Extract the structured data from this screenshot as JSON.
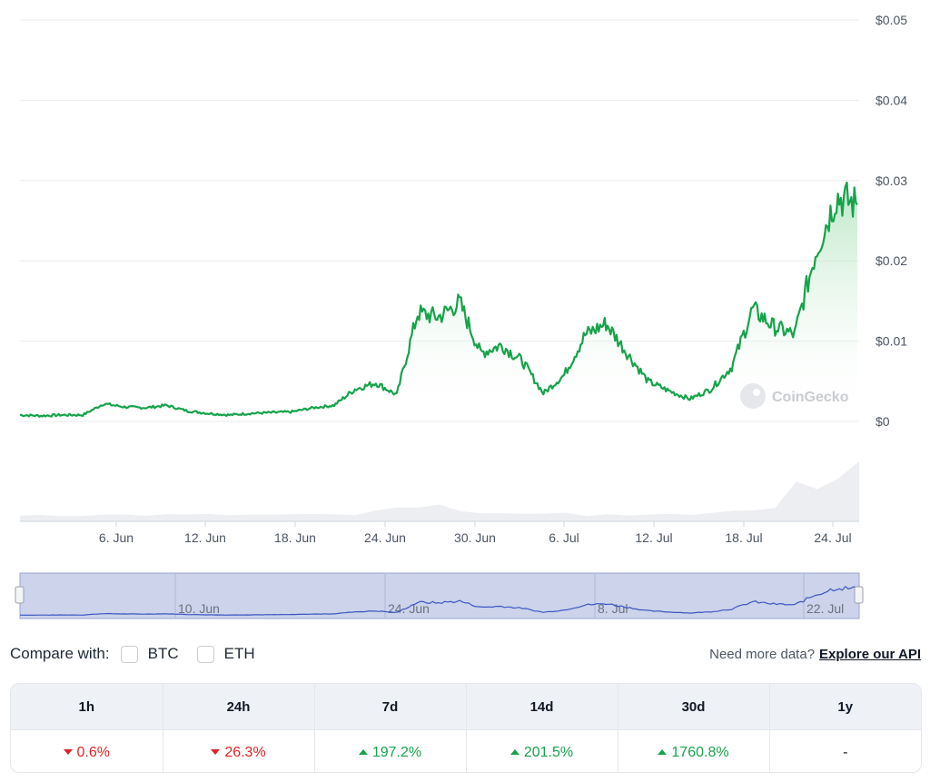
{
  "chart_data": {
    "type": "area",
    "y_tick_labels": [
      "$0",
      "$0.01",
      "$0.02",
      "$0.03",
      "$0.04",
      "$0.05"
    ],
    "ylim": [
      0,
      0.05
    ],
    "x_tick_labels": [
      "6. Jun",
      "12. Jun",
      "18. Jun",
      "24. Jun",
      "30. Jun",
      "6. Jul",
      "12. Jul",
      "18. Jul",
      "24. Jul"
    ],
    "x": [
      "31. May",
      "2. Jun",
      "4. Jun",
      "6. Jun",
      "8. Jun",
      "10. Jun",
      "12. Jun",
      "14. Jun",
      "16. Jun",
      "18. Jun",
      "20. Jun",
      "22. Jun",
      "24. Jun",
      "26. Jun",
      "28. Jun",
      "30. Jun",
      "1. Jul",
      "2. Jul",
      "3. Jul",
      "4. Jul",
      "5. Jul",
      "6. Jul",
      "7. Jul",
      "8. Jul",
      "9. Jul",
      "10. Jul",
      "11. Jul",
      "12. Jul",
      "13. Jul",
      "14. Jul",
      "15. Jul",
      "16. Jul",
      "17. Jul",
      "18. Jul",
      "19. Jul",
      "20. Jul",
      "21. Jul",
      "22. Jul",
      "23. Jul",
      "24. Jul",
      "25. Jul"
    ],
    "series": [
      {
        "values": [
          0.0008,
          0.0007,
          0.0008,
          0.0008,
          0.0022,
          0.0018,
          0.0017,
          0.002,
          0.0013,
          0.001,
          0.0008,
          0.001,
          0.0011,
          0.0012,
          0.0017,
          0.002,
          0.004,
          0.0048,
          0.0033,
          0.0135,
          0.013,
          0.0148,
          0.0085,
          0.0095,
          0.0075,
          0.0035,
          0.0058,
          0.0108,
          0.0122,
          0.0085,
          0.005,
          0.0038,
          0.0028,
          0.004,
          0.0068,
          0.014,
          0.0118,
          0.0108,
          0.021,
          0.028,
          0.027
        ]
      }
    ],
    "volume": [
      0.1,
      0.1,
      0.1,
      0.1,
      0.1,
      0.1,
      0.1,
      0.1,
      0.1,
      0.1,
      0.1,
      0.1,
      0.1,
      0.1,
      0.1,
      0.1,
      0.1,
      0.15,
      0.2,
      0.2,
      0.22,
      0.2,
      0.15,
      0.12,
      0.1,
      0.1,
      0.15,
      0.1,
      0.1,
      0.1,
      0.1,
      0.1,
      0.12,
      0.15,
      0.15,
      0.2,
      0.25,
      0.55,
      0.45,
      0.6,
      0.95
    ],
    "navigator": {
      "tick_labels": [
        "10. Jun",
        "24. Jun",
        "8. Jul",
        "22. Jul"
      ]
    },
    "watermark": "CoinGecko",
    "colors": {
      "line": "#16a34a",
      "area_top": "#bfe8c9",
      "navigator_fill": "#ccd3ea",
      "navigator_line": "#3b56c4"
    }
  },
  "compare": {
    "label": "Compare with:",
    "options": [
      {
        "label": "BTC"
      },
      {
        "label": "ETH"
      }
    ],
    "api_note": "Need more data?",
    "api_link": "Explore our API"
  },
  "performance": {
    "columns": [
      {
        "period": "1h",
        "value": "0.6%",
        "dir": "down"
      },
      {
        "period": "24h",
        "value": "26.3%",
        "dir": "down"
      },
      {
        "period": "7d",
        "value": "197.2%",
        "dir": "up"
      },
      {
        "period": "14d",
        "value": "201.5%",
        "dir": "up"
      },
      {
        "period": "30d",
        "value": "1760.8%",
        "dir": "up"
      },
      {
        "period": "1y",
        "value": "-",
        "dir": "none"
      }
    ]
  }
}
